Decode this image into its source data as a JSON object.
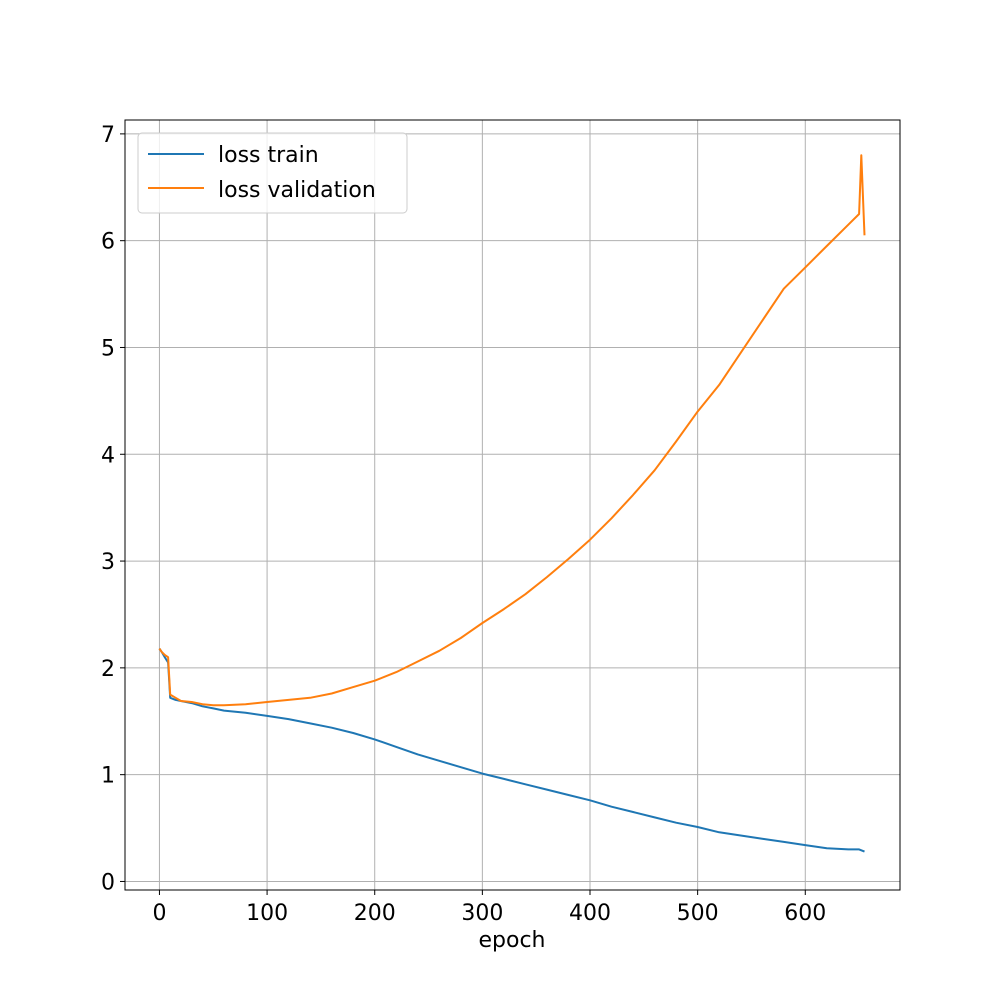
{
  "chart_data": {
    "type": "line",
    "title": "",
    "xlabel": "epoch",
    "ylabel": "",
    "xlim": [
      -32,
      688
    ],
    "ylim": [
      -0.08,
      7.13
    ],
    "xticks": [
      0,
      100,
      200,
      300,
      400,
      500,
      600
    ],
    "yticks": [
      0,
      1,
      2,
      3,
      4,
      5,
      6,
      7
    ],
    "grid": true,
    "legend_position": "top-left",
    "series": [
      {
        "name": "loss train",
        "color": "#1f77b4",
        "x": [
          0,
          2,
          5,
          8,
          10,
          15,
          20,
          30,
          40,
          50,
          60,
          80,
          100,
          120,
          140,
          160,
          180,
          200,
          220,
          240,
          260,
          280,
          300,
          320,
          340,
          360,
          380,
          400,
          420,
          440,
          460,
          480,
          500,
          520,
          540,
          560,
          580,
          600,
          620,
          640,
          650,
          655
        ],
        "y": [
          2.18,
          2.15,
          2.1,
          2.05,
          1.72,
          1.7,
          1.69,
          1.67,
          1.64,
          1.62,
          1.6,
          1.58,
          1.55,
          1.52,
          1.48,
          1.44,
          1.39,
          1.33,
          1.26,
          1.19,
          1.13,
          1.07,
          1.01,
          0.96,
          0.91,
          0.86,
          0.81,
          0.76,
          0.7,
          0.65,
          0.6,
          0.55,
          0.51,
          0.46,
          0.43,
          0.4,
          0.37,
          0.34,
          0.31,
          0.3,
          0.3,
          0.28
        ]
      },
      {
        "name": "loss validation",
        "color": "#ff7f0e",
        "x": [
          0,
          2,
          5,
          8,
          10,
          15,
          20,
          30,
          40,
          50,
          60,
          80,
          100,
          120,
          140,
          160,
          180,
          200,
          220,
          240,
          260,
          280,
          300,
          320,
          340,
          360,
          380,
          400,
          420,
          440,
          460,
          480,
          500,
          520,
          540,
          560,
          580,
          600,
          620,
          640,
          650,
          652,
          655
        ],
        "y": [
          2.18,
          2.15,
          2.12,
          2.1,
          1.75,
          1.72,
          1.69,
          1.68,
          1.66,
          1.65,
          1.65,
          1.66,
          1.68,
          1.7,
          1.72,
          1.76,
          1.82,
          1.88,
          1.96,
          2.06,
          2.16,
          2.28,
          2.42,
          2.55,
          2.69,
          2.85,
          3.02,
          3.2,
          3.4,
          3.62,
          3.85,
          4.12,
          4.4,
          4.65,
          4.95,
          5.25,
          5.55,
          5.75,
          5.95,
          6.15,
          6.25,
          6.8,
          6.05
        ]
      }
    ]
  }
}
